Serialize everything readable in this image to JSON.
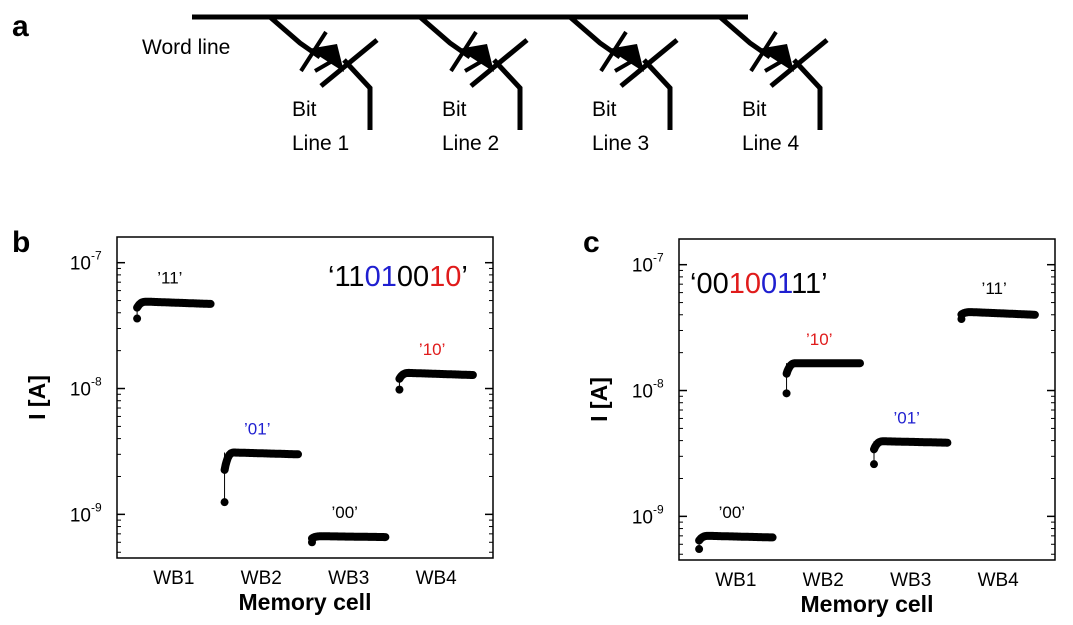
{
  "panel_a": {
    "letter": "a",
    "word_line_label": "Word line",
    "bit_lines": [
      {
        "line1": "Bit",
        "line2": "Line 1"
      },
      {
        "line1": "Bit",
        "line2": "Line 2"
      },
      {
        "line1": "Bit",
        "line2": "Line 3"
      },
      {
        "line1": "Bit",
        "line2": "Line 4"
      }
    ]
  },
  "colors": {
    "black": "#000000",
    "blue": "#1f1fd0",
    "red": "#e01b1b"
  },
  "chart_data": [
    {
      "type": "scatter",
      "panel": "b",
      "xlabel": "Memory cell",
      "ylabel": "I [A]",
      "scale_y": "log",
      "ylim": [
        4.5e-10,
        1.6e-07
      ],
      "y_ticks": [
        {
          "value": 1e-09,
          "base": "10",
          "exp": "-9"
        },
        {
          "value": 1e-08,
          "base": "10",
          "exp": "-8"
        },
        {
          "value": 1e-07,
          "base": "10",
          "exp": "-7"
        }
      ],
      "categories": [
        "WB1",
        "WB2",
        "WB3",
        "WB4"
      ],
      "code": [
        {
          "text": "‘11",
          "color": "black"
        },
        {
          "text": "01",
          "color": "blue"
        },
        {
          "text": "00",
          "color": "black"
        },
        {
          "text": "10",
          "color": "red"
        },
        {
          "text": "’",
          "color": "black"
        }
      ],
      "cells": [
        {
          "category": "WB1",
          "state": "’11’",
          "color": "black",
          "initial": 3.6e-08,
          "plateau": 4.9e-08,
          "final": 4.7e-08
        },
        {
          "category": "WB2",
          "state": "’01’",
          "color": "blue",
          "initial": 1.25e-09,
          "plateau": 3.1e-09,
          "final": 3e-09
        },
        {
          "category": "WB3",
          "state": "’00’",
          "color": "black",
          "initial": 6e-10,
          "plateau": 6.7e-10,
          "final": 6.6e-10
        },
        {
          "category": "WB4",
          "state": "’10’",
          "color": "red",
          "initial": 9.8e-09,
          "plateau": 1.33e-08,
          "final": 1.28e-08
        }
      ]
    },
    {
      "type": "scatter",
      "panel": "c",
      "xlabel": "Memory cell",
      "ylabel": "I [A]",
      "scale_y": "log",
      "ylim": [
        4.5e-10,
        1.6e-07
      ],
      "y_ticks": [
        {
          "value": 1e-09,
          "base": "10",
          "exp": "-9"
        },
        {
          "value": 1e-08,
          "base": "10",
          "exp": "-8"
        },
        {
          "value": 1e-07,
          "base": "10",
          "exp": "-7"
        }
      ],
      "categories": [
        "WB1",
        "WB2",
        "WB3",
        "WB4"
      ],
      "code": [
        {
          "text": "‘00",
          "color": "black"
        },
        {
          "text": "10",
          "color": "red"
        },
        {
          "text": "01",
          "color": "blue"
        },
        {
          "text": "11’",
          "color": "black"
        }
      ],
      "cells": [
        {
          "category": "WB1",
          "state": "’00’",
          "color": "black",
          "initial": 5.5e-10,
          "plateau": 7e-10,
          "final": 6.8e-10
        },
        {
          "category": "WB2",
          "state": "’10’",
          "color": "red",
          "initial": 9.5e-09,
          "plateau": 1.65e-08,
          "final": 1.65e-08
        },
        {
          "category": "WB3",
          "state": "’01’",
          "color": "blue",
          "initial": 2.6e-09,
          "plateau": 3.95e-09,
          "final": 3.85e-09
        },
        {
          "category": "WB4",
          "state": "’11’",
          "color": "black",
          "initial": 3.7e-08,
          "plateau": 4.2e-08,
          "final": 4e-08
        }
      ]
    }
  ]
}
